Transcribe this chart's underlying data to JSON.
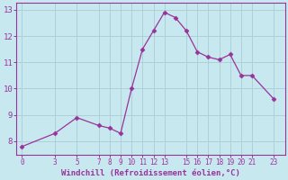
{
  "x": [
    0,
    3,
    5,
    7,
    8,
    9,
    10,
    11,
    12,
    13,
    14,
    15,
    16,
    17,
    18,
    19,
    20,
    21,
    23
  ],
  "y": [
    7.8,
    8.3,
    8.9,
    8.6,
    8.5,
    8.3,
    10.0,
    11.5,
    12.2,
    12.9,
    12.7,
    12.2,
    11.4,
    11.2,
    11.1,
    11.3,
    10.5,
    10.5,
    9.6
  ],
  "xticks": [
    0,
    3,
    5,
    7,
    8,
    9,
    10,
    11,
    12,
    13,
    15,
    16,
    17,
    18,
    19,
    20,
    21,
    23
  ],
  "xlim": [
    -0.5,
    24.0
  ],
  "ylim": [
    7.5,
    13.25
  ],
  "yticks": [
    8,
    9,
    10,
    11,
    12,
    13
  ],
  "line_color": "#993399",
  "marker": "D",
  "marker_size": 2.5,
  "bg_color": "#c8e8f0",
  "grid_color": "#aaccd4",
  "xlabel": "Windchill (Refroidissement éolien,°C)",
  "xlabel_color": "#993399",
  "tick_color": "#993399",
  "spine_color": "#993399"
}
